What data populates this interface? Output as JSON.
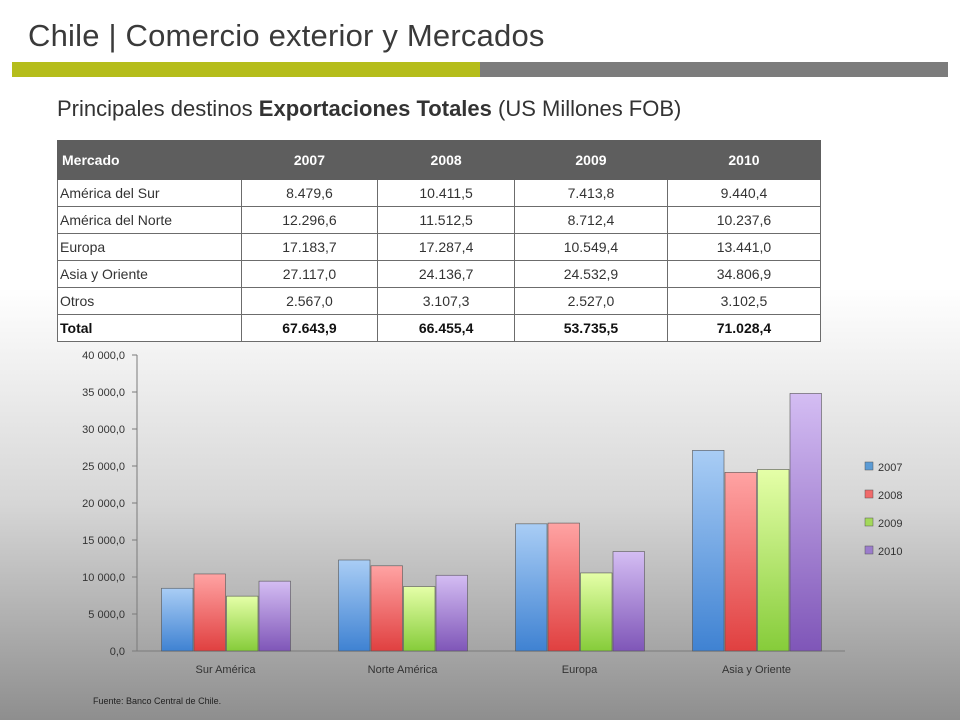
{
  "header": {
    "title": "Chile | Comercio exterior y Mercados",
    "subtitle_pre": "Principales destinos ",
    "subtitle_bold": "Exportaciones Totales",
    "subtitle_post": " (US Millones FOB)"
  },
  "colors": {
    "accent_green": "#b5bd1b",
    "accent_gray": "#7c7c7c",
    "table_header": "#5e5e5e",
    "series": [
      "#5b9bd5",
      "#f06a6a",
      "#a3d95a",
      "#9b7ccc"
    ]
  },
  "table": {
    "headers": [
      "Mercado",
      "2007",
      "2008",
      "2009",
      "2010"
    ],
    "rows": [
      [
        "América del Sur",
        "8.479,6",
        "10.411,5",
        "7.413,8",
        "9.440,4"
      ],
      [
        "América del Norte",
        "12.296,6",
        "11.512,5",
        "8.712,4",
        "10.237,6"
      ],
      [
        "Europa",
        "17.183,7",
        "17.287,4",
        "10.549,4",
        "13.441,0"
      ],
      [
        "Asia y Oriente",
        "27.117,0",
        "24.136,7",
        "24.532,9",
        "34.806,9"
      ],
      [
        "Otros",
        "2.567,0",
        "3.107,3",
        "2.527,0",
        "3.102,5"
      ]
    ],
    "total": [
      "Total",
      "67.643,9",
      "66.455,4",
      "53.735,5",
      "71.028,4"
    ]
  },
  "chart_data": {
    "type": "bar",
    "categories": [
      "Sur América",
      "Norte América",
      "Europa",
      "Asia y Oriente"
    ],
    "series": [
      {
        "name": "2007",
        "values": [
          8479.6,
          12296.6,
          17183.7,
          27117.0
        ]
      },
      {
        "name": "2008",
        "values": [
          10411.5,
          11512.5,
          17287.4,
          24136.7
        ]
      },
      {
        "name": "2009",
        "values": [
          7413.8,
          8712.4,
          10549.4,
          24532.9
        ]
      },
      {
        "name": "2010",
        "values": [
          9440.4,
          10237.6,
          13441.0,
          34806.9
        ]
      }
    ],
    "yticks": [
      "0,0",
      "5 000,0",
      "10 000,0",
      "15 000,0",
      "20 000,0",
      "25 000,0",
      "30 000,0",
      "35 000,0",
      "40 000,0"
    ],
    "ylim": [
      0,
      40000
    ],
    "legend_position": "right",
    "grid": false
  },
  "footer": {
    "source": "Fuente: Banco Central de Chile."
  }
}
